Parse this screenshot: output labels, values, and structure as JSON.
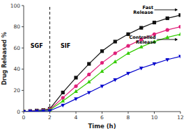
{
  "chart_data": {
    "type": "line",
    "x_label": "Time (h)",
    "y_label": "Drug Released %",
    "xlim": [
      0,
      12
    ],
    "ylim": [
      0,
      100
    ],
    "xticks": [
      0,
      2,
      4,
      6,
      8,
      10,
      12
    ],
    "yticks": [
      0,
      20,
      40,
      60,
      80,
      100
    ],
    "grid": false,
    "series": [
      {
        "color": "#111111",
        "marker": "square",
        "x": [
          0,
          0.5,
          1.0,
          1.5,
          2.0
        ],
        "values": [
          0,
          0.5,
          1.0,
          1.5,
          2.5
        ]
      },
      {
        "color": "#111111",
        "marker": "square",
        "x": [
          2.0,
          3.0,
          4.0,
          5.0,
          6.0,
          7.0,
          8.0,
          9.0,
          10.0,
          11.0,
          12.0
        ],
        "values": [
          2.5,
          18,
          32,
          45,
          57,
          66,
          73,
          79,
          84,
          88,
          91
        ]
      },
      {
        "color": "#e0207a",
        "marker": "circle",
        "x": [
          0,
          0.5,
          1.0,
          1.5,
          2.0
        ],
        "values": [
          0,
          0.5,
          0.8,
          1.2,
          2.0
        ]
      },
      {
        "color": "#e0207a",
        "marker": "circle",
        "x": [
          2.0,
          3.0,
          4.0,
          5.0,
          6.0,
          7.0,
          8.0,
          9.0,
          10.0,
          11.0,
          12.0
        ],
        "values": [
          2.0,
          13,
          24,
          35,
          46,
          55,
          62,
          68,
          73,
          77,
          80
        ]
      },
      {
        "color": "#33cc00",
        "marker": "triangle-up",
        "x": [
          0,
          0.5,
          1.0,
          1.5,
          2.0
        ],
        "values": [
          0,
          0.3,
          0.6,
          1.0,
          1.5
        ]
      },
      {
        "color": "#33cc00",
        "marker": "triangle-up",
        "x": [
          2.0,
          3.0,
          4.0,
          5.0,
          6.0,
          7.0,
          8.0,
          9.0,
          10.0,
          11.0,
          12.0
        ],
        "values": [
          1.5,
          10,
          19,
          28,
          38,
          47,
          55,
          61,
          66,
          70,
          73
        ]
      },
      {
        "color": "#0000cc",
        "marker": "triangle-down",
        "x": [
          0,
          0.5,
          1.0,
          1.5,
          2.0
        ],
        "values": [
          0,
          0.2,
          0.4,
          0.6,
          0.8
        ]
      },
      {
        "color": "#0000cc",
        "marker": "triangle-down",
        "x": [
          2.0,
          3.0,
          4.0,
          5.0,
          6.0,
          7.0,
          8.0,
          9.0,
          10.0,
          11.0,
          12.0
        ],
        "values": [
          0.8,
          6,
          12,
          18,
          24,
          30,
          36,
          41,
          45,
          49,
          52
        ]
      }
    ],
    "reference_lines": [
      {
        "x": 2.0,
        "line_style": "dashed"
      }
    ],
    "annotations": [
      {
        "text": "SGF",
        "x": 1.0,
        "y": 62
      },
      {
        "text": "SIF",
        "x": 3.2,
        "y": 62
      },
      {
        "text": "Fast\nRelease",
        "x": 10.0,
        "y": 96,
        "arrow_x": 11.8
      },
      {
        "text": "Controlled\nRelease",
        "x": 10.2,
        "y": 68,
        "arrow_x": 11.8
      }
    ]
  }
}
